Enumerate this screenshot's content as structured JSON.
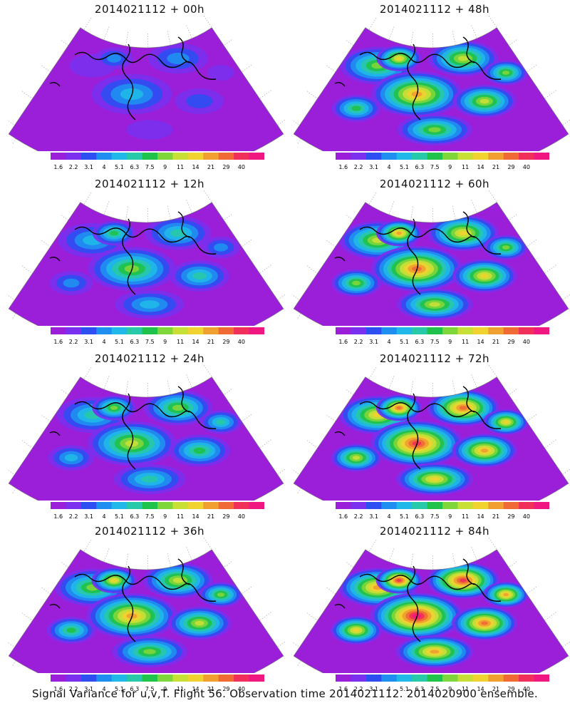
{
  "colorbar": {
    "labels": [
      "1.6",
      "2.2",
      "3.1",
      "4",
      "5.1",
      "6.3",
      "7.5",
      "9",
      "11",
      "14",
      "21",
      "29",
      "40"
    ],
    "colors": [
      "#9b1fd8",
      "#7a30ee",
      "#2d4ef0",
      "#1e8ff0",
      "#20b8e8",
      "#27c9a8",
      "#1fc24a",
      "#7fd63a",
      "#c8e036",
      "#f0d230",
      "#f0a030",
      "#f06a35",
      "#f0305a",
      "#f01880"
    ]
  },
  "panels": [
    {
      "title": "2014021112 + 00h",
      "level": 0.1
    },
    {
      "title": "2014021112 + 12h",
      "level": 0.3
    },
    {
      "title": "2014021112 + 24h",
      "level": 0.4
    },
    {
      "title": "2014021112 + 36h",
      "level": 0.55
    },
    {
      "title": "2014021112 + 48h",
      "level": 0.55
    },
    {
      "title": "2014021112 + 60h",
      "level": 0.62
    },
    {
      "title": "2014021112 + 72h",
      "level": 0.72
    },
    {
      "title": "2014021112 + 84h",
      "level": 0.8
    }
  ],
  "caption": "Signal Variance for u,v,T. Flight 56. Observation time 2014021112. 2014020900 ensemble."
}
